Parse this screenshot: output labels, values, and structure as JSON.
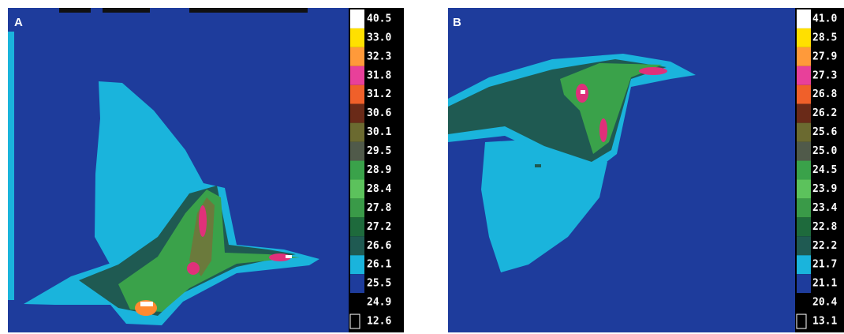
{
  "panels": [
    {
      "label": "A",
      "scale": [
        "40.5",
        "33.0",
        "32.3",
        "31.8",
        "31.2",
        "30.6",
        "30.1",
        "29.5",
        "28.9",
        "28.4",
        "27.8",
        "27.2",
        "26.6",
        "26.1",
        "25.5",
        "24.9",
        "12.6"
      ]
    },
    {
      "label": "B",
      "scale": [
        "41.0",
        "28.5",
        "27.9",
        "27.3",
        "26.8",
        "26.2",
        "25.6",
        "25.0",
        "24.5",
        "23.9",
        "23.4",
        "22.8",
        "22.2",
        "21.7",
        "21.1",
        "20.4",
        "13.1"
      ]
    }
  ]
}
